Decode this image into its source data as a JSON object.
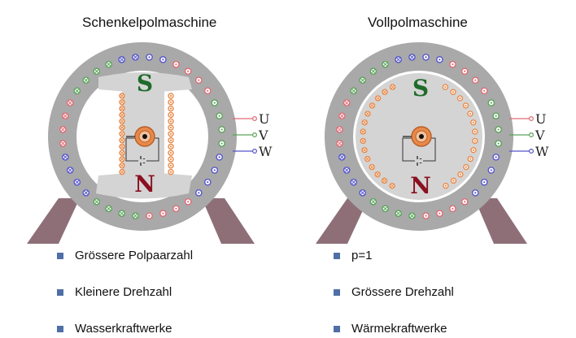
{
  "left": {
    "title": "Schenkelpolmaschine",
    "pole_top": "S",
    "pole_bottom": "N",
    "bullets": [
      "Grössere Polpaarzahl",
      "Kleinere Drehzahl",
      "Wasserkraftwerke"
    ]
  },
  "right": {
    "title": "Vollpolmaschine",
    "pole_top": "S",
    "pole_bottom": "N",
    "bullets": [
      "p=1",
      "Grössere Drehzahl",
      "Wärmekraftwerke"
    ]
  },
  "phases": [
    "U",
    "V",
    "W"
  ],
  "colors": {
    "phase_u": "#e06c75",
    "phase_v": "#5aa35a",
    "phase_w": "#5555cc",
    "pole_s": "#1f6b2a",
    "pole_n": "#8b1020",
    "winding": "#e8894a",
    "stator": "#a9a9a9",
    "rotor": "#d4d4d4",
    "foot": "#8e6f78",
    "bullet": "#4f6fa6"
  }
}
